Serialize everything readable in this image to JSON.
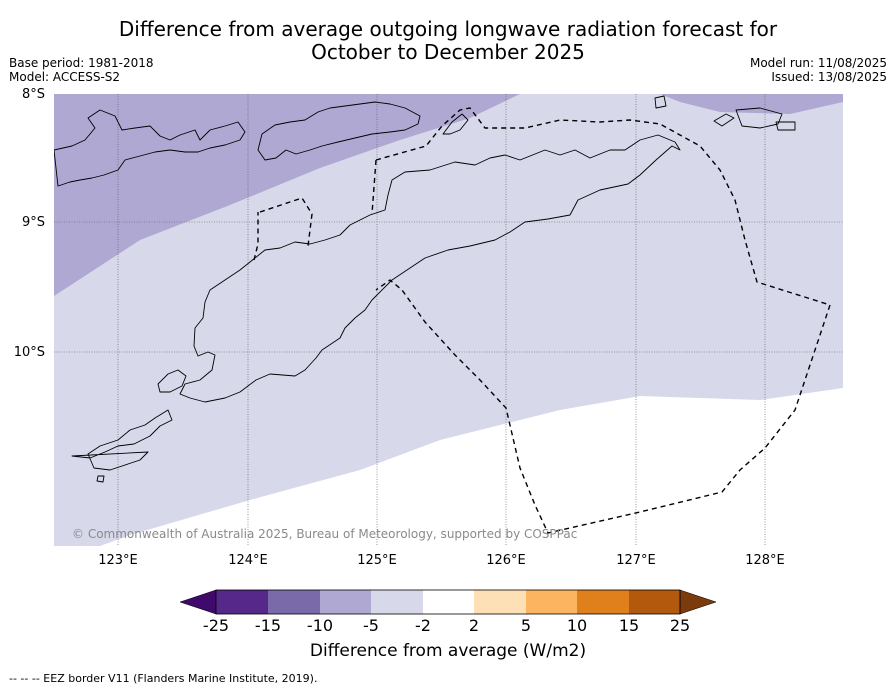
{
  "title_line1": "Difference from average outgoing longwave radiation forecast for",
  "title_line2": "October to December 2025",
  "base_period": "Base period: 1981-2018",
  "model": "Model: ACCESS-S2",
  "model_run": "Model run: 11/08/2025",
  "issued": "Issued: 13/08/2025",
  "lat_labels": [
    "8°S",
    "9°S",
    "10°S"
  ],
  "lon_labels": [
    "123°E",
    "124°E",
    "125°E",
    "126°E",
    "127°E",
    "128°E"
  ],
  "copyright": "© Commonwealth of Australia 2025, Bureau of Meteorology, supported by COSPPac",
  "colorbar": {
    "ticks": [
      "-25",
      "-15",
      "-10",
      "-5",
      "-2",
      "2",
      "5",
      "10",
      "15",
      "25"
    ],
    "colors": [
      "#3f0a6b",
      "#55288a",
      "#7b6aaa",
      "#aea8d2",
      "#d7d8ea",
      "#ffffff",
      "#fde0b6",
      "#fcb460",
      "#e0801c",
      "#b3590e",
      "#7c3b0c"
    ],
    "label": "Difference from average (W/m2)"
  },
  "footnote": "--  --  -- EEZ border V11 (Flanders Marine Institute, 2019).",
  "map": {
    "extent": {
      "lon": [
        122.5,
        128.6
      ],
      "lat": [
        -11.5,
        -8.0
      ]
    },
    "shading": [
      {
        "category": "-10 to -5",
        "color": "#aea8d2"
      },
      {
        "category": "-5 to -2",
        "color": "#d7d8ea"
      },
      {
        "category": "-2 to 2",
        "color": "#ffffff"
      }
    ]
  }
}
